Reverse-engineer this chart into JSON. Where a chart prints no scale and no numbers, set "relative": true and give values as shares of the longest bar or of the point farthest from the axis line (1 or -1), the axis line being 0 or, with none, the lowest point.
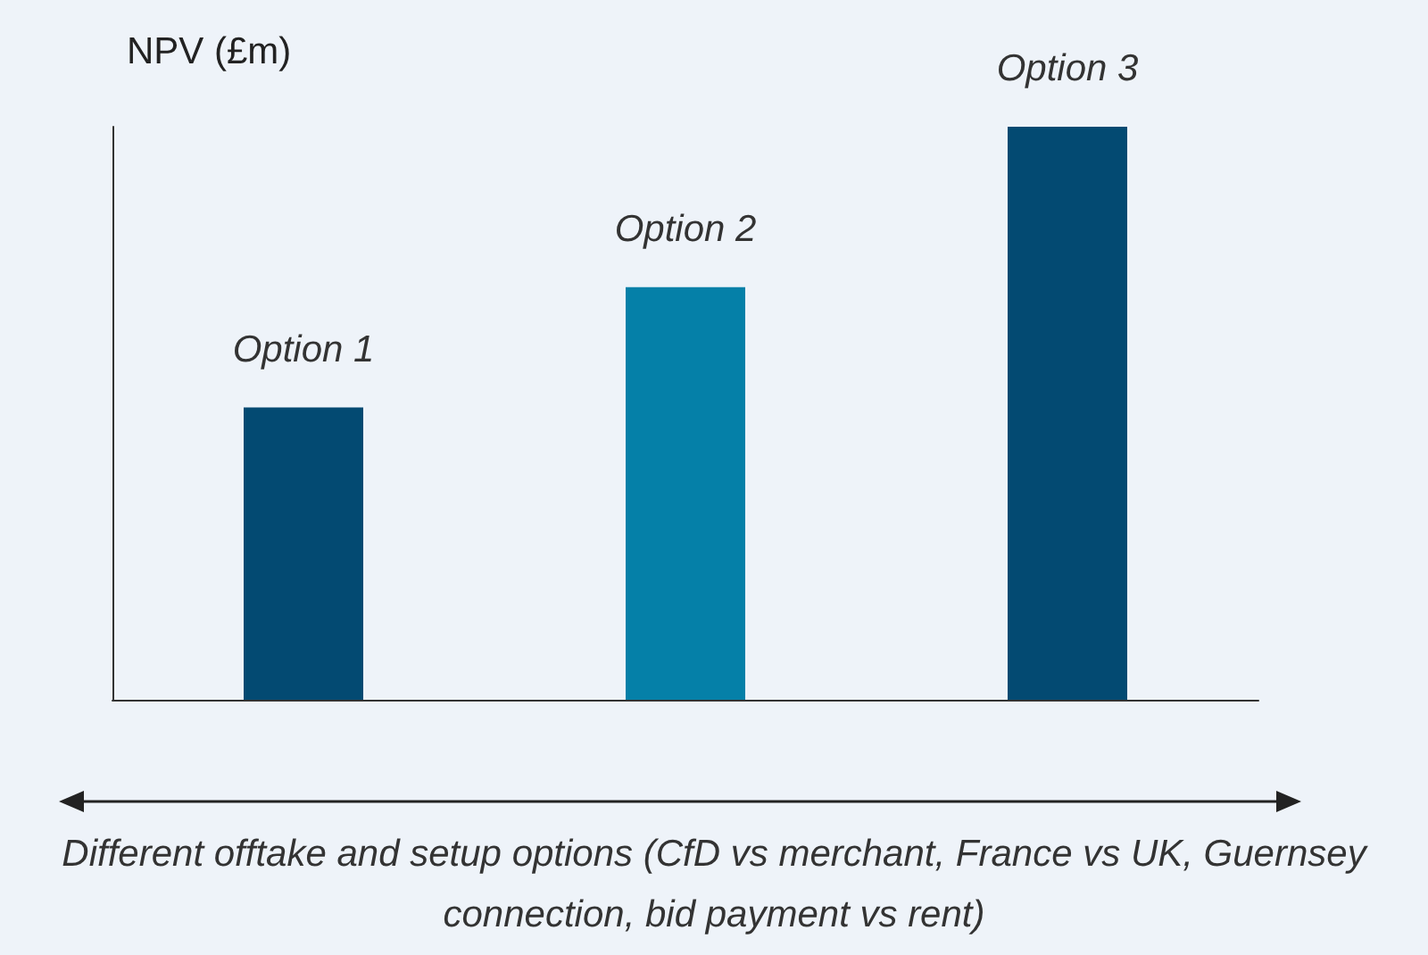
{
  "chart_data": {
    "type": "bar",
    "relative": true,
    "ylabel": "NPV (£m)",
    "xlabel": "Different offtake and setup options (CfD vs merchant, France vs UK, Guernsey connection, bid payment vs rent)",
    "categories": [
      "Option 1",
      "Option 2",
      "Option 3"
    ],
    "values": [
      0.51,
      0.72,
      1
    ],
    "colors": [
      "#034a72",
      "#0580a8",
      "#034a72"
    ],
    "grid": false
  }
}
